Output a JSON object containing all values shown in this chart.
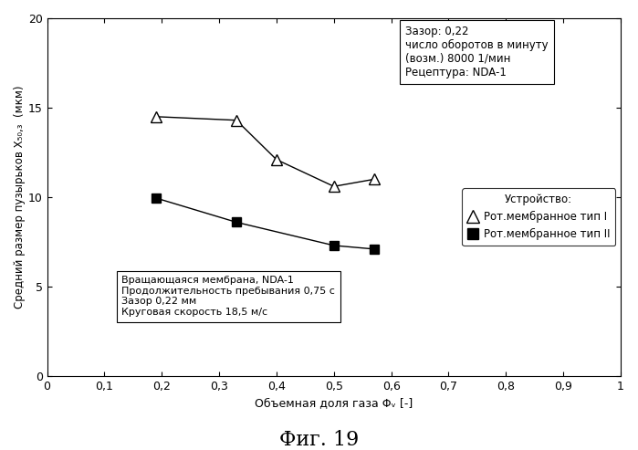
{
  "title_fig": "Фиг. 19",
  "xlabel": "Объемная доля газа Φᵥ [-]",
  "ylabel": "Средний размер пузырьков X₅₀,₃  (мкм)",
  "xlim": [
    0,
    1
  ],
  "ylim": [
    0,
    20
  ],
  "xticks": [
    0,
    0.1,
    0.2,
    0.3,
    0.4,
    0.5,
    0.6,
    0.7,
    0.8,
    0.9,
    1
  ],
  "yticks": [
    0,
    5,
    10,
    15,
    20
  ],
  "series1_x": [
    0.19,
    0.33,
    0.4,
    0.5,
    0.57
  ],
  "series1_y": [
    14.5,
    14.3,
    12.1,
    10.6,
    11.0
  ],
  "series2_x": [
    0.19,
    0.33,
    0.5,
    0.57
  ],
  "series2_y": [
    9.95,
    8.6,
    7.3,
    7.1
  ],
  "annotation_box": "Вращающаяся мембрана, NDA-1\nПродолжительность пребывания 0,75 с\nЗазор 0,22 мм\nКруговая скорость 18,5 м/с",
  "info_box_line1": "Зазор: 0,22",
  "info_box_line2": "число оборотов в минуту",
  "info_box_line3": "(возм.) 8000 1/мин",
  "info_box_line4": "Рецептура: NDA-1",
  "legend_title": "Устройство:",
  "legend1": "Рот.мембранное тип I",
  "legend2": "Рот.мембранное тип II",
  "color_black": "#000000",
  "background": "#ffffff"
}
